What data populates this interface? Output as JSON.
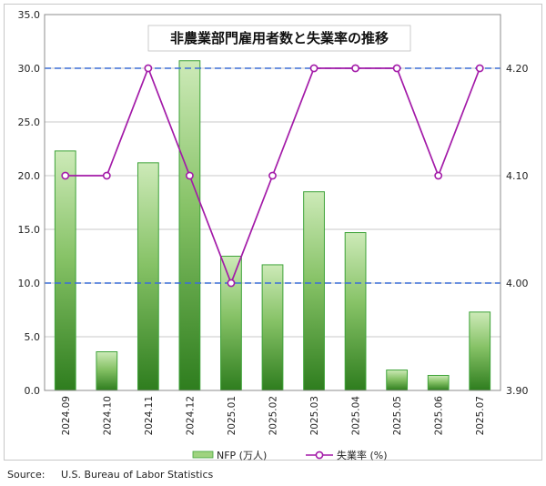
{
  "chart_data": {
    "type": "bar",
    "title": "非農業部門雇用者数と失業率の推移",
    "categories": [
      "2024.09",
      "2024.10",
      "2024.11",
      "2024.12",
      "2025.01",
      "2025.02",
      "2025.03",
      "2025.04",
      "2025.05",
      "2025.06",
      "2025.07"
    ],
    "series": [
      {
        "name": "NFP (万人)",
        "type": "bar",
        "axis": "left",
        "values": [
          22.3,
          3.6,
          21.2,
          30.7,
          12.5,
          11.7,
          18.5,
          14.7,
          1.9,
          1.4,
          7.3
        ]
      },
      {
        "name": "失業率 (%)",
        "type": "line",
        "axis": "right",
        "values": [
          4.1,
          4.1,
          4.2,
          4.1,
          4.0,
          4.1,
          4.2,
          4.2,
          4.2,
          4.1,
          4.2
        ]
      }
    ],
    "y_left": {
      "min": 0,
      "max": 35,
      "step": 5,
      "tick_labels": [
        "0.0",
        "5.0",
        "10.0",
        "15.0",
        "20.0",
        "25.0",
        "30.0",
        "35.0"
      ]
    },
    "y_right": {
      "min": 3.9,
      "max": 4.25,
      "tick_labels": [
        "3.90",
        "4.00",
        "4.10",
        "4.20"
      ],
      "tick_values": [
        3.9,
        4.0,
        4.1,
        4.2
      ]
    },
    "reference_lines": [
      10,
      30
    ],
    "grid": true,
    "legend_position": "bottom",
    "colors": {
      "bar_dark": "#2e7d1e",
      "bar_light": "#cdeab8",
      "bar_edge": "#3fa33a",
      "line": "#a31aa8",
      "marker_fill": "#ffffff",
      "ref_line": "#3b6fd6"
    }
  },
  "source": "Source:     U.S. Bureau of Labor Statistics"
}
